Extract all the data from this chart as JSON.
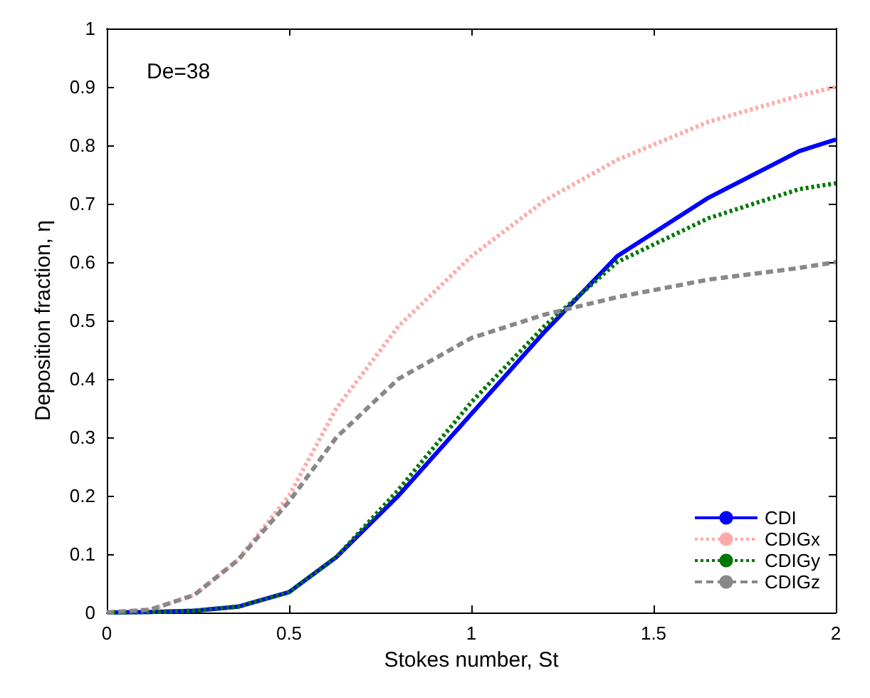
{
  "chart_data": {
    "type": "line",
    "xlabel": "Stokes number, St",
    "ylabel": "Deposition fraction, η",
    "annotations": [
      "De=38"
    ],
    "xlim": [
      0,
      2
    ],
    "xticks": [
      0,
      0.5,
      1,
      1.5,
      2
    ],
    "ylim": [
      0,
      1
    ],
    "yticks": [
      0,
      0.1,
      0.2,
      0.3,
      0.4,
      0.5,
      0.6,
      0.7,
      0.8,
      0.9,
      1
    ],
    "grid": false,
    "legend": "bottom right",
    "marker": "none",
    "x": [
      0,
      0.12,
      0.24,
      0.36,
      0.5,
      0.63,
      0.8,
      1.0,
      1.2,
      1.4,
      1.65,
      1.9,
      2.0
    ],
    "series": [
      {
        "name": "CDI",
        "color": "#0000ff",
        "line_style": "solid",
        "values": [
          0,
          0.001,
          0.003,
          0.01,
          0.035,
          0.095,
          0.2,
          0.34,
          0.48,
          0.61,
          0.71,
          0.79,
          0.81
        ]
      },
      {
        "name": "CDIGx",
        "color": "#ffaaaa",
        "line_style": "dotted",
        "values": [
          0,
          0.005,
          0.03,
          0.09,
          0.2,
          0.35,
          0.49,
          0.61,
          0.705,
          0.775,
          0.84,
          0.885,
          0.9
        ]
      },
      {
        "name": "CDIGy",
        "color": "#007700",
        "line_style": "dotted",
        "values": [
          0,
          0.001,
          0.003,
          0.01,
          0.035,
          0.095,
          0.21,
          0.36,
          0.49,
          0.6,
          0.675,
          0.725,
          0.735
        ]
      },
      {
        "name": "CDIGz",
        "color": "#888888",
        "line_style": "dashed",
        "values": [
          0,
          0.005,
          0.03,
          0.09,
          0.19,
          0.3,
          0.4,
          0.47,
          0.51,
          0.54,
          0.57,
          0.59,
          0.6
        ]
      }
    ]
  }
}
